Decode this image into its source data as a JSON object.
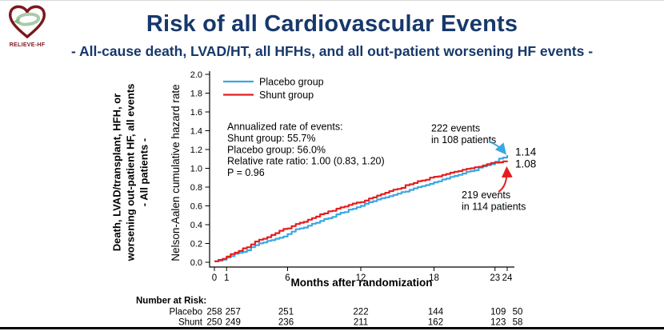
{
  "logo": {
    "text": "RELIEVE-HF"
  },
  "header": {
    "title": "Risk of all Cardiovascular Events",
    "subtitle": "- All-cause death, LVAD/HT, all HFHs, and all out-patient worsening HF events -"
  },
  "colors": {
    "title_navy": "#17386b",
    "placebo_blue": "#3aa8e1",
    "shunt_red": "#e41e20",
    "logo_maroon": "#7b181b",
    "logo_green": "#a9cba9"
  },
  "chart_data": {
    "type": "line",
    "xlabel": "Months after randomization",
    "ylabel": "Nelson-Aalen cumulative hazard rate",
    "ylabel_bold_lines": [
      "Death, LVAD/transplant, HFH, or",
      "worsening out-patient HF, all events",
      "- All patients -"
    ],
    "xlim": [
      0,
      24
    ],
    "ylim": [
      0.0,
      2.0
    ],
    "xticks": [
      0,
      1,
      6,
      12,
      18,
      23,
      24
    ],
    "yticks": [
      "0.0",
      "0.2",
      "0.4",
      "0.6",
      "0.8",
      "1.0",
      "1.2",
      "1.4",
      "1.6",
      "1.8",
      "2.0"
    ],
    "grid": false,
    "legend_position": "upper-left",
    "series": [
      {
        "name": "Placebo group",
        "color": "#3aa8e1",
        "end_label": "1.14",
        "x": [
          0,
          1,
          2,
          3,
          4,
          5,
          6,
          7,
          8,
          9,
          10,
          11,
          12,
          13,
          14,
          15,
          16,
          17,
          18,
          19,
          20,
          21,
          22,
          23,
          24
        ],
        "y": [
          0.01,
          0.05,
          0.1,
          0.16,
          0.21,
          0.25,
          0.3,
          0.36,
          0.41,
          0.46,
          0.51,
          0.56,
          0.6,
          0.65,
          0.69,
          0.73,
          0.77,
          0.81,
          0.85,
          0.89,
          0.93,
          0.97,
          1.02,
          1.07,
          1.14
        ]
      },
      {
        "name": "Shunt group",
        "color": "#e41e20",
        "end_label": "1.08",
        "x": [
          0,
          1,
          2,
          3,
          4,
          5,
          6,
          7,
          8,
          9,
          10,
          11,
          12,
          13,
          14,
          15,
          16,
          17,
          18,
          19,
          20,
          21,
          22,
          23,
          24
        ],
        "y": [
          0.01,
          0.06,
          0.12,
          0.19,
          0.25,
          0.31,
          0.36,
          0.42,
          0.47,
          0.52,
          0.57,
          0.61,
          0.64,
          0.69,
          0.74,
          0.78,
          0.83,
          0.87,
          0.91,
          0.94,
          0.97,
          1.0,
          1.03,
          1.06,
          1.08
        ]
      }
    ]
  },
  "annotations": {
    "rates_lines": [
      "Annualized rate of events:",
      "Shunt group: 55.7%",
      "Placebo group: 56.0%",
      "Relative rate ratio: 1.00 (0.83, 1.20)",
      "P = 0.96"
    ],
    "placebo_events": [
      "222 events",
      "in 108 patients"
    ],
    "shunt_events": [
      "219 events",
      "in 114 patients"
    ]
  },
  "risk_table": {
    "header": "Number at Risk:",
    "rows": [
      {
        "label": "Placebo",
        "values": [
          258,
          257,
          251,
          222,
          144,
          109,
          50
        ]
      },
      {
        "label": "Shunt",
        "values": [
          250,
          249,
          236,
          211,
          162,
          123,
          58
        ]
      }
    ]
  }
}
